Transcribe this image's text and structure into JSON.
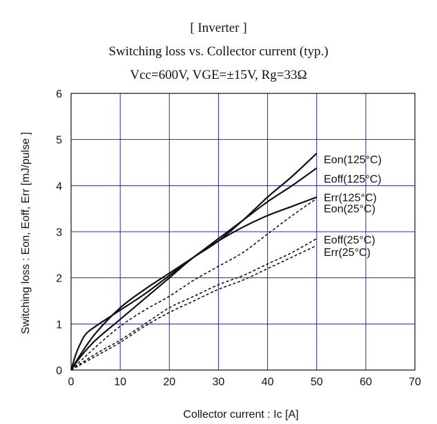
{
  "chart_data": {
    "type": "line",
    "title": "[ Inverter ]",
    "subtitle": "Switching loss  vs.  Collector current  (typ.)",
    "conditions": "Vcc=600V, VGE=±15V, Rg=33Ω",
    "xlabel": "Collector current : Ic [A]",
    "ylabel": "Switching loss  : Eon, Eoff, Err  [mJ/pulse ]",
    "xlim": [
      0,
      70
    ],
    "ylim": [
      0,
      6
    ],
    "xticks": [
      0,
      10,
      20,
      30,
      40,
      50,
      60,
      70
    ],
    "yticks": [
      0,
      1,
      2,
      3,
      4,
      5,
      6
    ],
    "grid": true,
    "series": [
      {
        "name": "Eon(125°C)",
        "style": "solid",
        "points": [
          [
            0,
            0
          ],
          [
            2,
            0.35
          ],
          [
            5,
            0.8
          ],
          [
            10,
            1.35
          ],
          [
            15,
            1.75
          ],
          [
            20,
            2.1
          ],
          [
            25,
            2.45
          ],
          [
            30,
            2.8
          ],
          [
            35,
            3.25
          ],
          [
            40,
            3.75
          ],
          [
            45,
            4.2
          ],
          [
            50,
            4.7
          ]
        ]
      },
      {
        "name": "Eoff(125°C)",
        "style": "solid",
        "points": [
          [
            0,
            0
          ],
          [
            1,
            0.35
          ],
          [
            2,
            0.6
          ],
          [
            3,
            0.78
          ],
          [
            5,
            0.95
          ],
          [
            10,
            1.3
          ],
          [
            15,
            1.65
          ],
          [
            20,
            2.05
          ],
          [
            25,
            2.45
          ],
          [
            30,
            2.85
          ],
          [
            35,
            3.25
          ],
          [
            40,
            3.65
          ],
          [
            45,
            4.0
          ],
          [
            50,
            4.38
          ]
        ]
      },
      {
        "name": "Err(125°C)",
        "style": "solid",
        "points": [
          [
            0,
            0
          ],
          [
            2,
            0.3
          ],
          [
            5,
            0.65
          ],
          [
            10,
            1.1
          ],
          [
            15,
            1.55
          ],
          [
            20,
            2.0
          ],
          [
            25,
            2.45
          ],
          [
            30,
            2.8
          ],
          [
            35,
            3.1
          ],
          [
            40,
            3.35
          ],
          [
            45,
            3.55
          ],
          [
            50,
            3.75
          ]
        ]
      },
      {
        "name": "Eon(25°C)",
        "style": "dashed",
        "points": [
          [
            0,
            0
          ],
          [
            5,
            0.5
          ],
          [
            10,
            0.95
          ],
          [
            15,
            1.3
          ],
          [
            20,
            1.6
          ],
          [
            25,
            1.95
          ],
          [
            30,
            2.25
          ],
          [
            35,
            2.55
          ],
          [
            40,
            2.95
          ],
          [
            45,
            3.35
          ],
          [
            50,
            3.72
          ]
        ]
      },
      {
        "name": "Eoff(25°C)",
        "style": "dashed",
        "points": [
          [
            0,
            0
          ],
          [
            5,
            0.35
          ],
          [
            10,
            0.65
          ],
          [
            15,
            1.0
          ],
          [
            20,
            1.35
          ],
          [
            25,
            1.6
          ],
          [
            30,
            1.85
          ],
          [
            35,
            2.05
          ],
          [
            40,
            2.3
          ],
          [
            45,
            2.55
          ],
          [
            50,
            2.85
          ]
        ]
      },
      {
        "name": "Err(25°C)",
        "style": "dashed",
        "points": [
          [
            0,
            0
          ],
          [
            5,
            0.3
          ],
          [
            10,
            0.6
          ],
          [
            15,
            0.95
          ],
          [
            20,
            1.25
          ],
          [
            25,
            1.5
          ],
          [
            30,
            1.75
          ],
          [
            35,
            1.95
          ],
          [
            40,
            2.2
          ],
          [
            45,
            2.45
          ],
          [
            50,
            2.7
          ]
        ]
      }
    ]
  }
}
